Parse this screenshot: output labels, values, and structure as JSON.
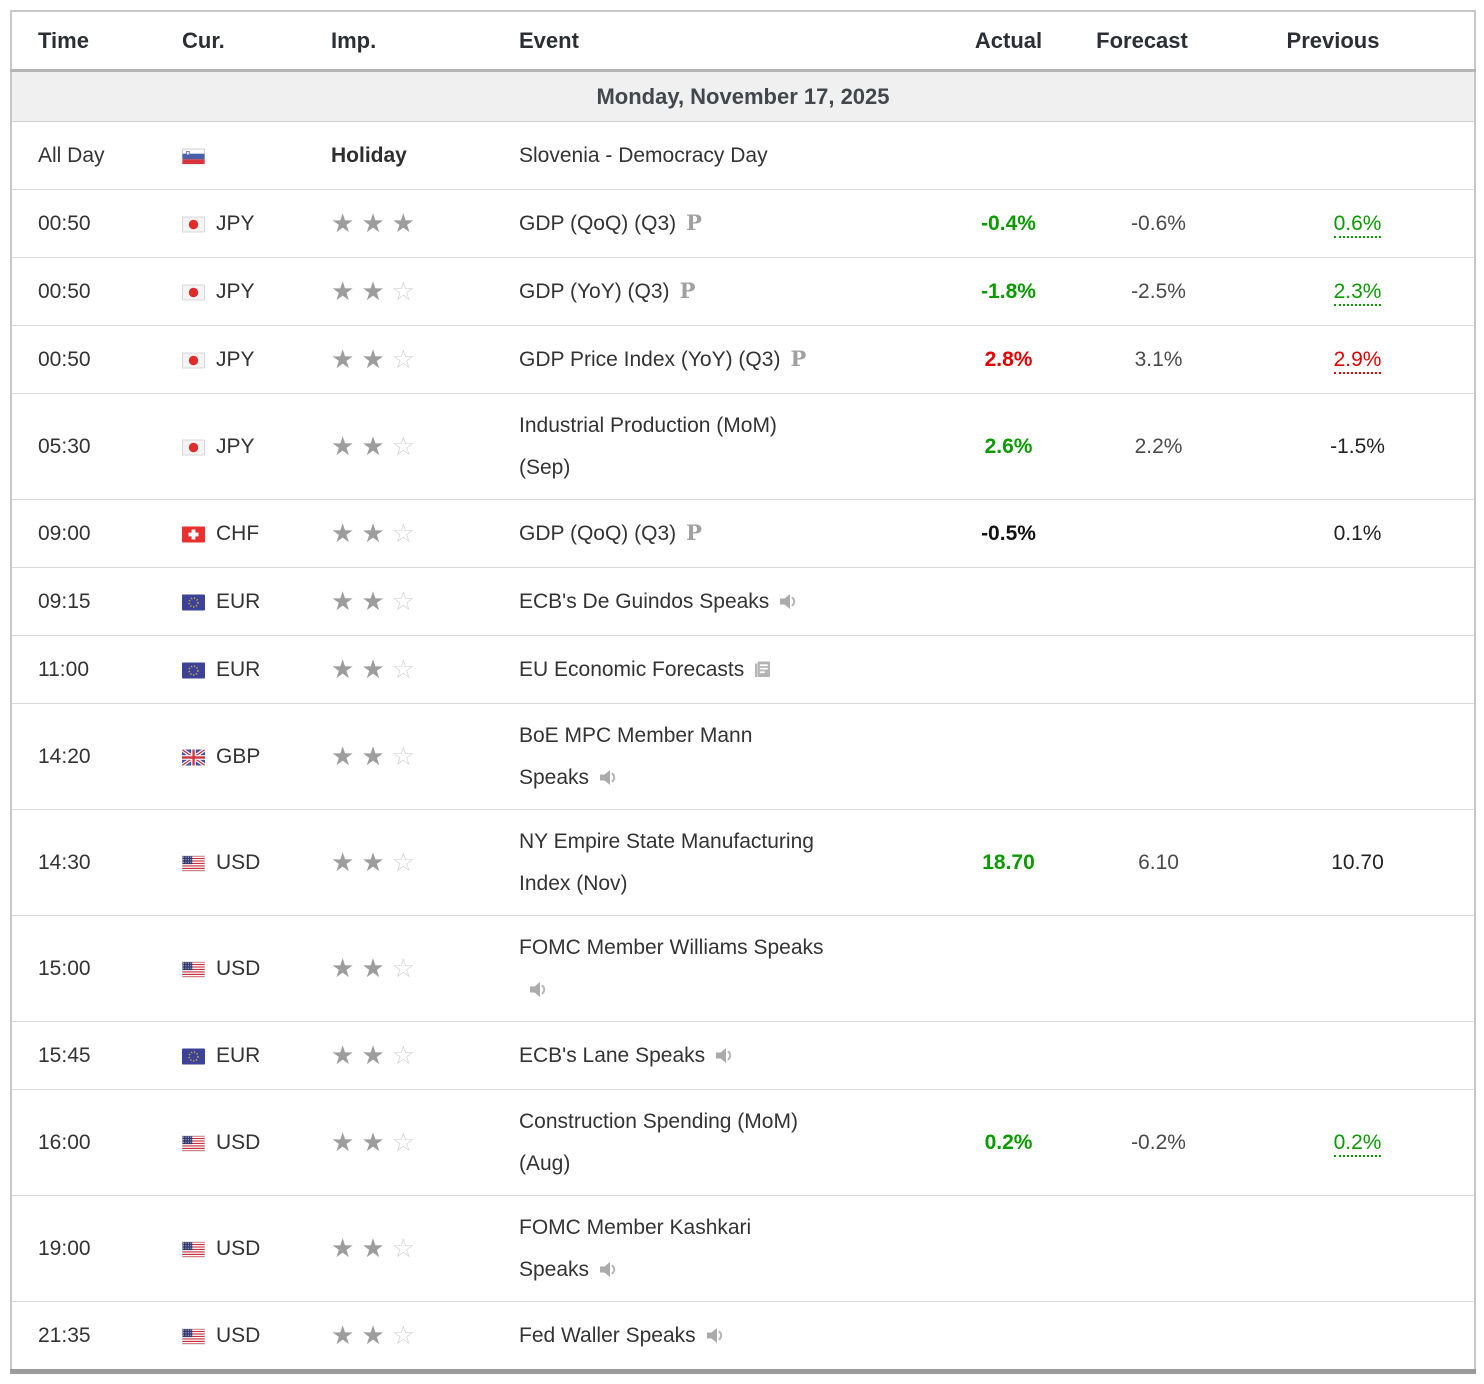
{
  "colors": {
    "positive": "#0a9b00",
    "negative": "#e30000",
    "neutral_actual": "#111111",
    "forecast_text": "#4a4a4a",
    "previous_neutral": "#222222",
    "header_text": "#2b2f33",
    "date_text": "#41474d",
    "date_bg": "#f0f0f0",
    "star_filled": "#9d9d9d",
    "star_empty": "#d3d3d3",
    "border_outer": "#c7c7c7",
    "border_row": "#d9d9d9",
    "border_bottom": "#9b9b9b"
  },
  "icon_legend": {
    "preliminary": "preliminary-release-p-icon",
    "speaker": "speech-audio-icon",
    "report": "report-document-icon"
  },
  "table": {
    "columns": [
      {
        "key": "time",
        "label": "Time"
      },
      {
        "key": "cur",
        "label": "Cur."
      },
      {
        "key": "imp",
        "label": "Imp."
      },
      {
        "key": "event",
        "label": "Event"
      },
      {
        "key": "actual",
        "label": "Actual"
      },
      {
        "key": "forecast",
        "label": "Forecast"
      },
      {
        "key": "prev",
        "label": "Previous"
      }
    ],
    "date_header": "Monday, November 17, 2025",
    "rows": [
      {
        "time": "All Day",
        "flag": "slovenia",
        "currency": "",
        "stars": null,
        "holiday": "Holiday",
        "event_lines": [
          "Slovenia - Democracy Day"
        ],
        "event_icon": null,
        "actual": {
          "text": "",
          "tone": null
        },
        "forecast": "",
        "previous": {
          "text": "",
          "tone": null,
          "underlined": false
        }
      },
      {
        "time": "00:50",
        "flag": "japan",
        "currency": "JPY",
        "stars": 3,
        "holiday": null,
        "event_lines": [
          "GDP (QoQ) (Q3)"
        ],
        "event_icon": "preliminary",
        "actual": {
          "text": "-0.4%",
          "tone": "positive"
        },
        "forecast": "-0.6%",
        "previous": {
          "text": "0.6%",
          "tone": "positive",
          "underlined": true
        }
      },
      {
        "time": "00:50",
        "flag": "japan",
        "currency": "JPY",
        "stars": 2,
        "holiday": null,
        "event_lines": [
          "GDP (YoY) (Q3)"
        ],
        "event_icon": "preliminary",
        "actual": {
          "text": "-1.8%",
          "tone": "positive"
        },
        "forecast": "-2.5%",
        "previous": {
          "text": "2.3%",
          "tone": "positive",
          "underlined": true
        }
      },
      {
        "time": "00:50",
        "flag": "japan",
        "currency": "JPY",
        "stars": 2,
        "holiday": null,
        "event_lines": [
          "GDP Price Index (YoY) (Q3)"
        ],
        "event_icon": "preliminary",
        "actual": {
          "text": "2.8%",
          "tone": "negative"
        },
        "forecast": "3.1%",
        "previous": {
          "text": "2.9%",
          "tone": "negative",
          "underlined": true
        }
      },
      {
        "time": "05:30",
        "flag": "japan",
        "currency": "JPY",
        "stars": 2,
        "holiday": null,
        "event_lines": [
          "Industrial Production (MoM)",
          "(Sep)"
        ],
        "event_icon": null,
        "actual": {
          "text": "2.6%",
          "tone": "positive"
        },
        "forecast": "2.2%",
        "previous": {
          "text": "-1.5%",
          "tone": "neutral",
          "underlined": false
        }
      },
      {
        "time": "09:00",
        "flag": "switzerland",
        "currency": "CHF",
        "stars": 2,
        "holiday": null,
        "event_lines": [
          "GDP (QoQ) (Q3)"
        ],
        "event_icon": "preliminary",
        "actual": {
          "text": "-0.5%",
          "tone": "neutral"
        },
        "forecast": "",
        "previous": {
          "text": "0.1%",
          "tone": "neutral",
          "underlined": false
        }
      },
      {
        "time": "09:15",
        "flag": "eu",
        "currency": "EUR",
        "stars": 2,
        "holiday": null,
        "event_lines": [
          "ECB's De Guindos Speaks"
        ],
        "event_icon": "speaker",
        "actual": {
          "text": "",
          "tone": null
        },
        "forecast": "",
        "previous": {
          "text": "",
          "tone": null,
          "underlined": false
        }
      },
      {
        "time": "11:00",
        "flag": "eu",
        "currency": "EUR",
        "stars": 2,
        "holiday": null,
        "event_lines": [
          "EU Economic Forecasts"
        ],
        "event_icon": "report",
        "actual": {
          "text": "",
          "tone": null
        },
        "forecast": "",
        "previous": {
          "text": "",
          "tone": null,
          "underlined": false
        }
      },
      {
        "time": "14:20",
        "flag": "uk",
        "currency": "GBP",
        "stars": 2,
        "holiday": null,
        "event_lines": [
          "BoE MPC Member Mann",
          "Speaks"
        ],
        "event_icon": "speaker",
        "actual": {
          "text": "",
          "tone": null
        },
        "forecast": "",
        "previous": {
          "text": "",
          "tone": null,
          "underlined": false
        }
      },
      {
        "time": "14:30",
        "flag": "usa",
        "currency": "USD",
        "stars": 2,
        "holiday": null,
        "event_lines": [
          "NY Empire State Manufacturing",
          "Index (Nov)"
        ],
        "event_icon": null,
        "actual": {
          "text": "18.70",
          "tone": "positive"
        },
        "forecast": "6.10",
        "previous": {
          "text": "10.70",
          "tone": "neutral",
          "underlined": false
        }
      },
      {
        "time": "15:00",
        "flag": "usa",
        "currency": "USD",
        "stars": 2,
        "holiday": null,
        "event_lines": [
          "FOMC Member Williams Speaks",
          ""
        ],
        "event_icon": "speaker",
        "actual": {
          "text": "",
          "tone": null
        },
        "forecast": "",
        "previous": {
          "text": "",
          "tone": null,
          "underlined": false
        }
      },
      {
        "time": "15:45",
        "flag": "eu",
        "currency": "EUR",
        "stars": 2,
        "holiday": null,
        "event_lines": [
          "ECB's Lane Speaks"
        ],
        "event_icon": "speaker",
        "actual": {
          "text": "",
          "tone": null
        },
        "forecast": "",
        "previous": {
          "text": "",
          "tone": null,
          "underlined": false
        }
      },
      {
        "time": "16:00",
        "flag": "usa",
        "currency": "USD",
        "stars": 2,
        "holiday": null,
        "event_lines": [
          "Construction Spending (MoM)",
          "(Aug)"
        ],
        "event_icon": null,
        "actual": {
          "text": "0.2%",
          "tone": "positive"
        },
        "forecast": "-0.2%",
        "previous": {
          "text": "0.2%",
          "tone": "positive",
          "underlined": true
        }
      },
      {
        "time": "19:00",
        "flag": "usa",
        "currency": "USD",
        "stars": 2,
        "holiday": null,
        "event_lines": [
          "FOMC Member Kashkari",
          "Speaks"
        ],
        "event_icon": "speaker",
        "actual": {
          "text": "",
          "tone": null
        },
        "forecast": "",
        "previous": {
          "text": "",
          "tone": null,
          "underlined": false
        }
      },
      {
        "time": "21:35",
        "flag": "usa",
        "currency": "USD",
        "stars": 2,
        "holiday": null,
        "event_lines": [
          "Fed Waller Speaks"
        ],
        "event_icon": "speaker",
        "actual": {
          "text": "",
          "tone": null
        },
        "forecast": "",
        "previous": {
          "text": "",
          "tone": null,
          "underlined": false
        }
      }
    ]
  }
}
